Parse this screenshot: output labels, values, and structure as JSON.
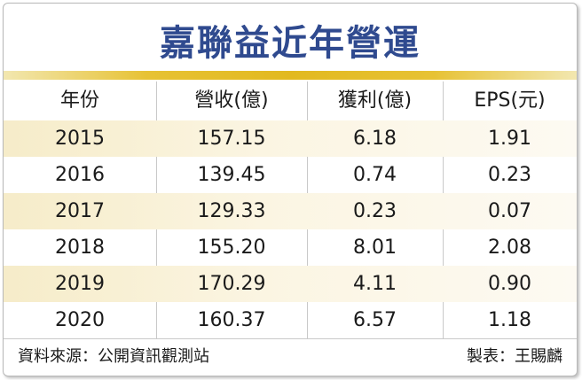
{
  "title": "嘉聯益近年營運",
  "colors": {
    "title": "#2f4a8f",
    "accent_rule": "#e2b91f",
    "row_shade": "#f6ecc9"
  },
  "columns": [
    "年份",
    "營收(億)",
    "獲利(億)",
    "EPS(元)"
  ],
  "rows": [
    [
      "2015",
      "157.15",
      "6.18",
      "1.91"
    ],
    [
      "2016",
      "139.45",
      "0.74",
      "0.23"
    ],
    [
      "2017",
      "129.33",
      "0.23",
      "0.07"
    ],
    [
      "2018",
      "155.20",
      "8.01",
      "2.08"
    ],
    [
      "2019",
      "170.29",
      "4.11",
      "0.90"
    ],
    [
      "2020",
      "160.37",
      "6.57",
      "1.18"
    ]
  ],
  "footer": {
    "source": "資料來源：公開資訊觀測站",
    "maker": "製表：王賜麟"
  }
}
